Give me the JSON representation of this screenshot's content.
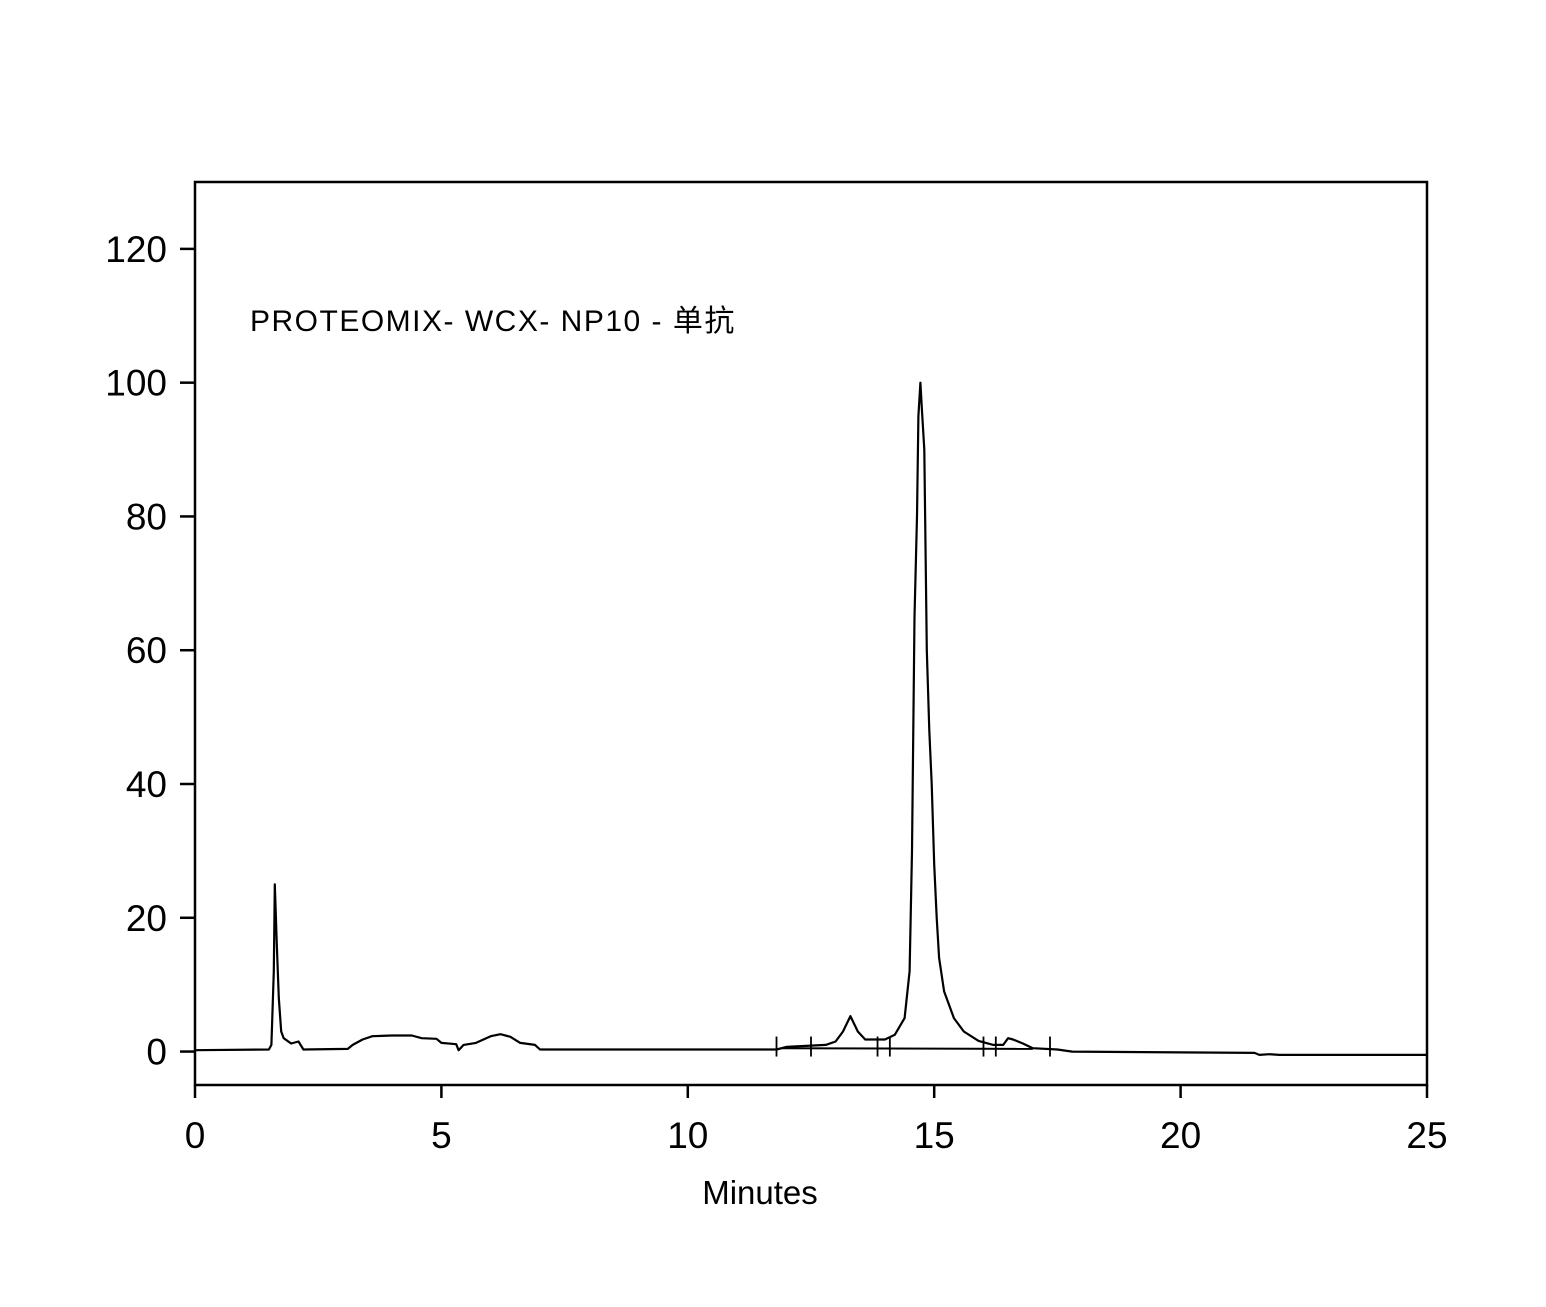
{
  "chart_data": {
    "type": "line",
    "title": "",
    "annotation": "PROTEOMIX- WCX- NP10 - 单抗",
    "xlabel": "Minutes",
    "ylabel": "",
    "xlim": [
      0,
      25
    ],
    "ylim": [
      -5,
      130
    ],
    "xticks": [
      0,
      5,
      10,
      15,
      20,
      25
    ],
    "yticks": [
      0,
      20,
      40,
      60,
      80,
      100,
      120
    ],
    "grid": false,
    "line_color": "#000000",
    "series": [
      {
        "x": [
          0,
          1.5,
          1.55,
          1.6,
          1.62,
          1.66,
          1.7,
          1.75,
          1.8,
          1.95,
          2.1,
          2.2,
          3.1,
          3.2,
          3.4,
          3.6,
          4.0,
          4.4,
          4.6,
          4.9,
          5.0,
          5.3,
          5.35,
          5.45,
          5.7,
          6.0,
          6.2,
          6.4,
          6.6,
          6.9,
          7.0,
          11.8,
          12.0,
          12.8,
          13.0,
          13.15,
          13.3,
          13.45,
          13.6,
          14.0,
          14.2,
          14.4,
          14.5,
          14.55,
          14.6,
          14.65,
          14.68,
          14.72,
          14.75,
          14.8,
          14.85,
          14.9,
          14.95,
          15.0,
          15.05,
          15.1,
          15.2,
          15.4,
          15.6,
          15.9,
          16.2,
          16.4,
          16.5,
          16.6,
          16.8,
          17.0,
          17.5,
          17.8,
          21.5,
          21.6,
          21.8,
          22.0,
          25.0
        ],
        "y": [
          0.2,
          0.3,
          1.0,
          12,
          25,
          16,
          8,
          3,
          2,
          1.2,
          1.5,
          0.3,
          0.4,
          1.0,
          1.8,
          2.3,
          2.4,
          2.4,
          2.0,
          1.9,
          1.3,
          1.1,
          0.2,
          1.0,
          1.3,
          2.3,
          2.6,
          2.2,
          1.3,
          1.0,
          0.3,
          0.3,
          0.7,
          1.0,
          1.5,
          3,
          5.3,
          3,
          1.8,
          1.8,
          2.5,
          5,
          12,
          30,
          65,
          80,
          95,
          100,
          96,
          90,
          60,
          48,
          40,
          28,
          20,
          14,
          9,
          5,
          3,
          1.6,
          1.0,
          1.0,
          2.0,
          1.8,
          1.2,
          0.5,
          0.3,
          0,
          -0.2,
          -0.5,
          -0.4,
          -0.5,
          -0.5
        ]
      }
    ],
    "integration_baseline": {
      "x": [
        11.9,
        17.0
      ],
      "y": [
        0.5,
        0.4
      ]
    },
    "integration_marks": [
      11.8,
      12.5,
      13.85,
      14.1,
      16.0,
      16.25,
      17.35
    ]
  }
}
